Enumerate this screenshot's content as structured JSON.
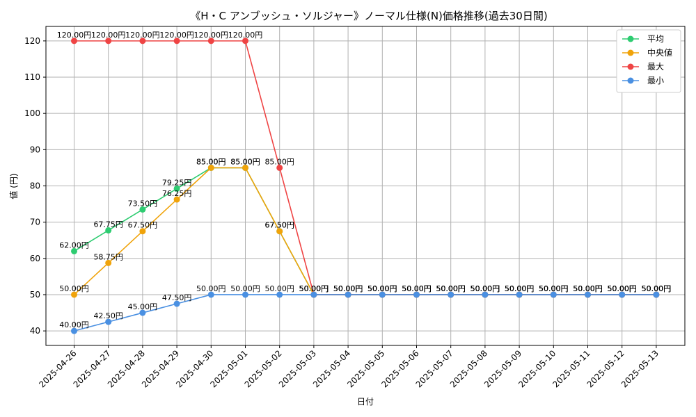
{
  "chart_data": {
    "type": "line",
    "title": "《H・C アンブッシュ・ソルジャー》ノーマル仕様(N)価格推移(過去30日間)",
    "xlabel": "日付",
    "ylabel": "値 (円)",
    "ylim": [
      36,
      124
    ],
    "yticks": [
      40,
      50,
      60,
      70,
      80,
      90,
      100,
      110,
      120
    ],
    "grid": true,
    "legend_position": "top-right",
    "label_suffix": "円",
    "categories": [
      "2025-04-26",
      "2025-04-27",
      "2025-04-28",
      "2025-04-29",
      "2025-04-30",
      "2025-05-01",
      "2025-05-02",
      "2025-05-03",
      "2025-05-04",
      "2025-05-05",
      "2025-05-06",
      "2025-05-07",
      "2025-05-08",
      "2025-05-09",
      "2025-05-10",
      "2025-05-11",
      "2025-05-12",
      "2025-05-13"
    ],
    "series": [
      {
        "name": "平均",
        "color": "#2ecc71",
        "values": [
          62.0,
          67.75,
          73.5,
          79.25,
          85.0,
          85.0,
          67.5,
          50.0,
          50.0,
          50.0,
          50.0,
          50.0,
          50.0,
          50.0,
          50.0,
          50.0,
          50.0,
          50.0
        ]
      },
      {
        "name": "中央値",
        "color": "#f0a30a",
        "values": [
          50.0,
          58.75,
          67.5,
          76.25,
          85.0,
          85.0,
          67.5,
          50.0,
          50.0,
          50.0,
          50.0,
          50.0,
          50.0,
          50.0,
          50.0,
          50.0,
          50.0,
          50.0
        ]
      },
      {
        "name": "最大",
        "color": "#ef4444",
        "values": [
          120.0,
          120.0,
          120.0,
          120.0,
          120.0,
          120.0,
          85.0,
          50.0,
          50.0,
          50.0,
          50.0,
          50.0,
          50.0,
          50.0,
          50.0,
          50.0,
          50.0,
          50.0
        ]
      },
      {
        "name": "最小",
        "color": "#4a90e2",
        "values": [
          40.0,
          42.5,
          45.0,
          47.5,
          50.0,
          50.0,
          50.0,
          50.0,
          50.0,
          50.0,
          50.0,
          50.0,
          50.0,
          50.0,
          50.0,
          50.0,
          50.0,
          50.0
        ]
      }
    ]
  }
}
